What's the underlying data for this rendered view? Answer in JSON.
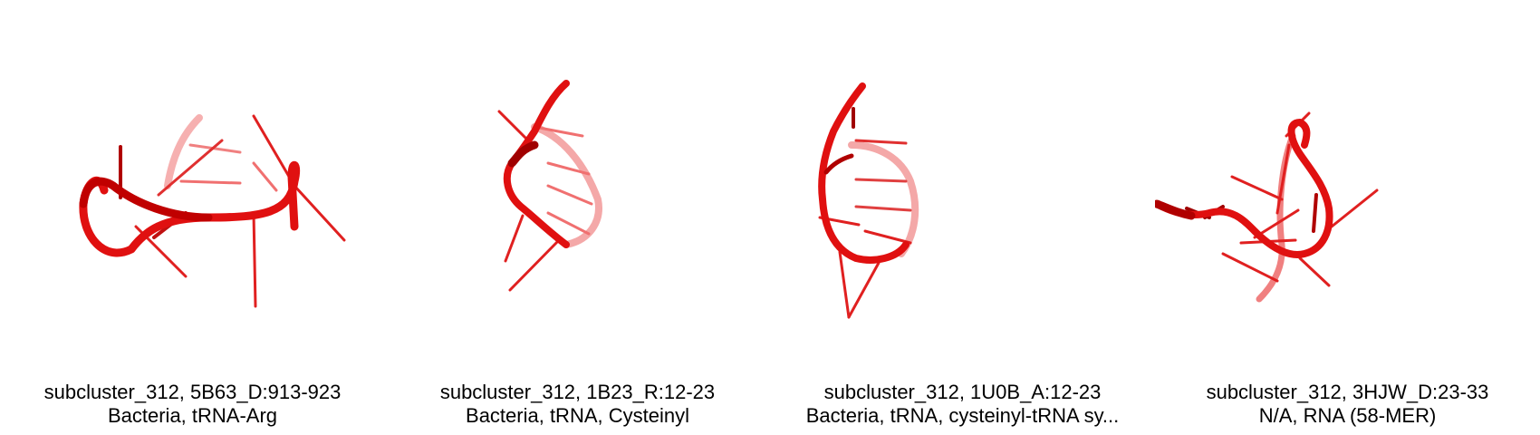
{
  "panels": [
    {
      "title": "subcluster_312, 5B63_D:913-923",
      "subtitle": "Bacteria, tRNA-Arg"
    },
    {
      "title": "subcluster_312, 1B23_R:12-23",
      "subtitle": "Bacteria, tRNA, Cysteinyl"
    },
    {
      "title": "subcluster_312, 1U0B_A:12-23",
      "subtitle": "Bacteria, tRNA, cysteinyl-tRNA sy..."
    },
    {
      "title": "subcluster_312, 3HJW_D:23-33",
      "subtitle": "N/A, RNA (58-MER)"
    }
  ],
  "colors": {
    "backbone": "#e01010",
    "backbone_dark": "#a00000",
    "backbone_faded": "#f4a0a0",
    "text": "#000000"
  }
}
